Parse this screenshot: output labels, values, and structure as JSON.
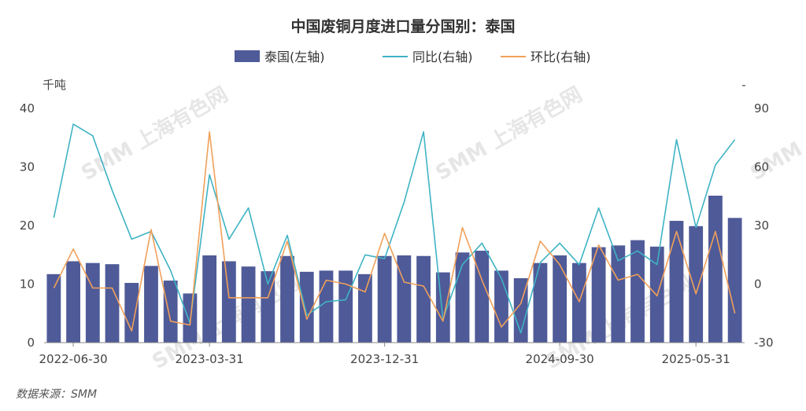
{
  "chart_data": {
    "type": "bar+line",
    "title": "中国废铜月度进口量分国别：泰国",
    "legend": [
      "泰国(左轴)",
      "同比(右轴)",
      "环比(右轴)"
    ],
    "left_unit": "千吨",
    "right_unit": "-",
    "source": "数据来源：SMM",
    "watermark": "SMM 上海有色网",
    "x_tick_labels": [
      "2022-06-30",
      "2023-03-31",
      "2023-12-31",
      "2024-09-30",
      "2025-05-31"
    ],
    "x_tick_index": [
      1,
      8,
      17,
      26,
      33
    ],
    "left_axis": {
      "min": 0,
      "max": 40,
      "ticks": [
        0,
        10,
        20,
        30,
        40
      ]
    },
    "right_axis": {
      "min": -30,
      "max": 90,
      "ticks": [
        -30,
        0,
        30,
        60,
        90
      ]
    },
    "colors": {
      "bar": "#4f5a98",
      "yoy": "#3fb3c4",
      "mom": "#f0a05a"
    },
    "series": [
      {
        "name": "泰国(左轴)",
        "axis": "left",
        "values": [
          11.7,
          13.9,
          13.6,
          13.4,
          10.2,
          13.1,
          10.6,
          8.4,
          14.9,
          13.9,
          13.0,
          12.2,
          14.8,
          12.1,
          12.3,
          12.3,
          11.7,
          14.8,
          14.9,
          14.8,
          12.0,
          15.4,
          15.7,
          12.3,
          11.0,
          13.6,
          14.9,
          13.6,
          16.3,
          16.6,
          17.5,
          16.4,
          20.8,
          19.9,
          25.1,
          21.3
        ]
      },
      {
        "name": "同比(右轴)",
        "axis": "right",
        "values": [
          34,
          82,
          76,
          48,
          23,
          27,
          7,
          -20,
          56,
          23,
          39,
          0,
          25,
          -16,
          -9,
          -8,
          15,
          13,
          42,
          78,
          -18,
          10,
          21,
          3,
          -25,
          11,
          21,
          10,
          39,
          12,
          17,
          10,
          74,
          29,
          61,
          74
        ]
      },
      {
        "name": "环比(右轴)",
        "axis": "right",
        "values": [
          -2,
          18,
          -2,
          -2,
          -24,
          28,
          -19,
          -21,
          78,
          -7,
          -7,
          -7,
          22,
          -18,
          2,
          0,
          -4,
          26,
          1,
          -1,
          -19,
          29,
          2,
          -22,
          -10,
          22,
          10,
          -9,
          20,
          2,
          5,
          -6,
          27,
          -5,
          27,
          -15
        ]
      }
    ]
  }
}
